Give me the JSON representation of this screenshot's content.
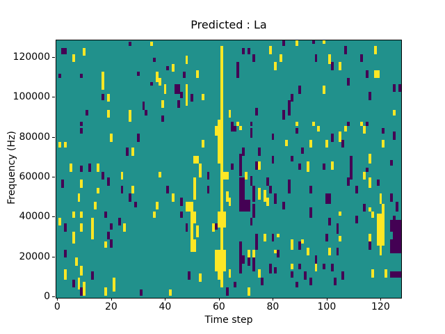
{
  "figure": {
    "title": "Predicted : La",
    "xlabel": "Time step",
    "ylabel": "Frequency (Hz)",
    "background_color": "#ffffff",
    "text_color": "#000000"
  },
  "chart_data": {
    "type": "heatmap",
    "title": "Predicted : La",
    "xlabel": "Time step",
    "ylabel": "Frequency (Hz)",
    "x_range": [
      0,
      128
    ],
    "y_range": [
      0,
      129000
    ],
    "x_ticks": [
      0,
      20,
      40,
      60,
      80,
      100,
      120
    ],
    "y_ticks": [
      0,
      20000,
      40000,
      60000,
      80000,
      100000,
      120000
    ],
    "grid_cols": 128,
    "grid_rows": 129,
    "grid_lines": false,
    "legend": false,
    "palette": {
      "t": "#21918c",
      "y": "#fde725",
      "p": "#440154"
    },
    "background_value": "t",
    "value_semantics": "p = low value, t = mid/background, y = high value (viridis)",
    "cells_format": "[col, rowTopStart, rowTopEndExclusive, colorKey, colspan(optional)] ; rows counted from top of plot (high frequency) downward",
    "cells": [
      [
        2,
        4,
        7,
        "p",
        2
      ],
      [
        10,
        4,
        8,
        "y"
      ],
      [
        6,
        7,
        11,
        "y"
      ],
      [
        27,
        1,
        3,
        "p"
      ],
      [
        35,
        1,
        3,
        "y"
      ],
      [
        36,
        9,
        11,
        "p"
      ],
      [
        41,
        13,
        15,
        "p"
      ],
      [
        1,
        17,
        19,
        "p"
      ],
      [
        9,
        17,
        19,
        "p"
      ],
      [
        17,
        16,
        25,
        "y"
      ],
      [
        30,
        16,
        18,
        "p"
      ],
      [
        35,
        21,
        23,
        "p"
      ],
      [
        37,
        16,
        21,
        "y"
      ],
      [
        38,
        19,
        23,
        "y"
      ],
      [
        40,
        22,
        27,
        "y"
      ],
      [
        17,
        27,
        30,
        "p"
      ],
      [
        19,
        27,
        31,
        "y"
      ],
      [
        39,
        30,
        34,
        "y"
      ],
      [
        32,
        31,
        35,
        "p"
      ],
      [
        33,
        35,
        38,
        "p"
      ],
      [
        11,
        35,
        38,
        "p"
      ],
      [
        19,
        35,
        39,
        "y"
      ],
      [
        27,
        35,
        41,
        "y"
      ],
      [
        9,
        41,
        43,
        "p"
      ],
      [
        39,
        38,
        41,
        "p"
      ],
      [
        61,
        3,
        40,
        "y"
      ],
      [
        69,
        4,
        7,
        "p"
      ],
      [
        71,
        4,
        7,
        "p"
      ],
      [
        79,
        3,
        7,
        "y"
      ],
      [
        84,
        0,
        3,
        "p"
      ],
      [
        48,
        8,
        12,
        "y"
      ],
      [
        73,
        7,
        11,
        "p"
      ],
      [
        83,
        7,
        11,
        "y"
      ],
      [
        43,
        12,
        16,
        "y"
      ],
      [
        47,
        16,
        19,
        "p"
      ],
      [
        52,
        15,
        19,
        "y"
      ],
      [
        67,
        11,
        19,
        "p"
      ],
      [
        81,
        11,
        15,
        "y"
      ],
      [
        44,
        22,
        27,
        "p",
        2
      ],
      [
        48,
        22,
        33,
        "y"
      ],
      [
        46,
        26,
        29,
        "p"
      ],
      [
        50,
        27,
        31,
        "p"
      ],
      [
        54,
        27,
        30,
        "y"
      ],
      [
        45,
        30,
        34,
        "p"
      ],
      [
        64,
        35,
        39,
        "y"
      ],
      [
        74,
        34,
        38,
        "p"
      ],
      [
        84,
        35,
        40,
        "p"
      ],
      [
        60,
        40,
        43,
        "y"
      ],
      [
        65,
        41,
        43,
        "p"
      ],
      [
        67,
        41,
        43,
        "y"
      ],
      [
        72,
        41,
        43,
        "p"
      ],
      [
        89,
        0,
        3,
        "y"
      ],
      [
        95,
        0,
        2,
        "p"
      ],
      [
        99,
        0,
        2,
        "y"
      ],
      [
        107,
        3,
        7,
        "p"
      ],
      [
        118,
        3,
        7,
        "y"
      ],
      [
        96,
        7,
        11,
        "p"
      ],
      [
        101,
        7,
        12,
        "y"
      ],
      [
        113,
        7,
        11,
        "p"
      ],
      [
        102,
        11,
        15,
        "p"
      ],
      [
        105,
        11,
        15,
        "y"
      ],
      [
        115,
        15,
        19,
        "p"
      ],
      [
        118,
        15,
        19,
        "y",
        2
      ],
      [
        108,
        19,
        23,
        "p"
      ],
      [
        90,
        23,
        27,
        "p"
      ],
      [
        99,
        23,
        27,
        "y"
      ],
      [
        125,
        22,
        26,
        "p"
      ],
      [
        127,
        22,
        26,
        "p"
      ],
      [
        87,
        27,
        31,
        "p"
      ],
      [
        116,
        26,
        30,
        "p"
      ],
      [
        86,
        30,
        38,
        "p"
      ],
      [
        125,
        35,
        38,
        "y"
      ],
      [
        89,
        41,
        43,
        "y"
      ],
      [
        95,
        41,
        43,
        "y"
      ],
      [
        108,
        41,
        43,
        "p"
      ],
      [
        113,
        41,
        43,
        "y"
      ],
      [
        115,
        41,
        43,
        "p"
      ],
      [
        9,
        44,
        47,
        "p"
      ],
      [
        20,
        47,
        51,
        "y"
      ],
      [
        30,
        47,
        51,
        "p"
      ],
      [
        1,
        51,
        54,
        "y"
      ],
      [
        3,
        51,
        54,
        "y"
      ],
      [
        26,
        54,
        58,
        "p"
      ],
      [
        28,
        54,
        58,
        "y"
      ],
      [
        5,
        62,
        66,
        "y"
      ],
      [
        9,
        63,
        66,
        "p"
      ],
      [
        12,
        62,
        66,
        "p"
      ],
      [
        15,
        62,
        66,
        "y"
      ],
      [
        17,
        66,
        70,
        "p"
      ],
      [
        24,
        66,
        70,
        "y"
      ],
      [
        38,
        66,
        69,
        "y"
      ],
      [
        2,
        70,
        74,
        "p"
      ],
      [
        9,
        70,
        74,
        "y"
      ],
      [
        19,
        69,
        73,
        "p"
      ],
      [
        24,
        73,
        77,
        "p"
      ],
      [
        28,
        73,
        77,
        "y"
      ],
      [
        41,
        73,
        77,
        "p"
      ],
      [
        15,
        74,
        77,
        "y"
      ],
      [
        8,
        77,
        81,
        "y"
      ],
      [
        27,
        77,
        81,
        "p"
      ],
      [
        14,
        81,
        85,
        "y"
      ],
      [
        29,
        81,
        84,
        "p"
      ],
      [
        37,
        81,
        85,
        "y"
      ],
      [
        59,
        43,
        48,
        "y"
      ],
      [
        60,
        43,
        62,
        "y"
      ],
      [
        61,
        40,
        86,
        "y"
      ],
      [
        65,
        43,
        46,
        "p",
        2
      ],
      [
        68,
        43,
        45,
        "y"
      ],
      [
        72,
        44,
        49,
        "p"
      ],
      [
        80,
        47,
        50,
        "p"
      ],
      [
        54,
        50,
        54,
        "y"
      ],
      [
        85,
        50,
        53,
        "y"
      ],
      [
        69,
        54,
        58,
        "p"
      ],
      [
        75,
        54,
        58,
        "p"
      ],
      [
        51,
        58,
        62,
        "y",
        2
      ],
      [
        68,
        57,
        68,
        "p"
      ],
      [
        74,
        61,
        65,
        "p"
      ],
      [
        75,
        61,
        65,
        "y"
      ],
      [
        80,
        58,
        62,
        "p"
      ],
      [
        53,
        62,
        69,
        "y"
      ],
      [
        56,
        66,
        70,
        "p"
      ],
      [
        62,
        66,
        70,
        "y",
        2
      ],
      [
        65,
        62,
        65,
        "p"
      ],
      [
        70,
        66,
        70,
        "y"
      ],
      [
        72,
        68,
        73,
        "p"
      ],
      [
        78,
        69,
        73,
        "p"
      ],
      [
        56,
        73,
        77,
        "p"
      ],
      [
        51,
        69,
        80,
        "y"
      ],
      [
        68,
        69,
        81,
        "p",
        2
      ],
      [
        73,
        73,
        81,
        "p"
      ],
      [
        75,
        74,
        80,
        "y"
      ],
      [
        79,
        73,
        77,
        "p"
      ],
      [
        43,
        77,
        81,
        "y"
      ],
      [
        46,
        79,
        83,
        "p"
      ],
      [
        48,
        81,
        86,
        "y",
        3
      ],
      [
        63,
        76,
        81,
        "y"
      ],
      [
        64,
        79,
        83,
        "y"
      ],
      [
        68,
        80,
        86,
        "p",
        4
      ],
      [
        77,
        75,
        81,
        "y"
      ],
      [
        78,
        79,
        83,
        "y"
      ],
      [
        81,
        77,
        82,
        "p"
      ],
      [
        73,
        82,
        86,
        "p"
      ],
      [
        84,
        81,
        85,
        "p"
      ],
      [
        89,
        44,
        47,
        "p"
      ],
      [
        97,
        43,
        46,
        "y"
      ],
      [
        107,
        43,
        46,
        "y"
      ],
      [
        114,
        43,
        47,
        "y"
      ],
      [
        121,
        44,
        47,
        "p"
      ],
      [
        102,
        47,
        51,
        "p"
      ],
      [
        105,
        46,
        51,
        "y"
      ],
      [
        106,
        50,
        54,
        "p"
      ],
      [
        94,
        50,
        54,
        "y"
      ],
      [
        100,
        50,
        54,
        "y"
      ],
      [
        125,
        46,
        50,
        "p"
      ],
      [
        121,
        50,
        54,
        "y"
      ],
      [
        91,
        54,
        57,
        "p"
      ],
      [
        87,
        58,
        61,
        "p"
      ],
      [
        116,
        57,
        62,
        "y"
      ],
      [
        109,
        58,
        70,
        "p"
      ],
      [
        90,
        62,
        65,
        "p"
      ],
      [
        93,
        61,
        66,
        "y"
      ],
      [
        99,
        62,
        65,
        "p"
      ],
      [
        102,
        61,
        65,
        "y"
      ],
      [
        124,
        60,
        63,
        "p"
      ],
      [
        115,
        64,
        66,
        "p"
      ],
      [
        114,
        66,
        70,
        "y"
      ],
      [
        108,
        69,
        73,
        "p"
      ],
      [
        116,
        69,
        74,
        "y"
      ],
      [
        119,
        70,
        73,
        "p"
      ],
      [
        86,
        70,
        77,
        "p"
      ],
      [
        111,
        73,
        77,
        "p"
      ],
      [
        94,
        73,
        77,
        "p"
      ],
      [
        100,
        77,
        82,
        "p",
        2
      ],
      [
        124,
        77,
        81,
        "p"
      ],
      [
        120,
        77,
        82,
        "y"
      ],
      [
        121,
        82,
        86,
        "y"
      ],
      [
        114,
        82,
        86,
        "p"
      ],
      [
        116,
        84,
        86,
        "y"
      ],
      [
        126,
        81,
        86,
        "p"
      ],
      [
        94,
        84,
        86,
        "p"
      ],
      [
        6,
        86,
        89,
        "y"
      ],
      [
        9,
        86,
        89,
        "y"
      ],
      [
        18,
        86,
        89,
        "p"
      ],
      [
        36,
        86,
        89,
        "y"
      ],
      [
        1,
        89,
        93,
        "y"
      ],
      [
        3,
        92,
        96,
        "p"
      ],
      [
        9,
        92,
        96,
        "y"
      ],
      [
        13,
        89,
        100,
        "y"
      ],
      [
        20,
        92,
        95,
        "p"
      ],
      [
        23,
        89,
        93,
        "p"
      ],
      [
        25,
        92,
        96,
        "y"
      ],
      [
        6,
        96,
        102,
        "y"
      ],
      [
        19,
        96,
        100,
        "p"
      ],
      [
        20,
        100,
        104,
        "p"
      ],
      [
        18,
        101,
        104,
        "y"
      ],
      [
        3,
        105,
        109,
        "p"
      ],
      [
        7,
        109,
        113,
        "y"
      ],
      [
        3,
        115,
        120,
        "y"
      ],
      [
        9,
        113,
        118,
        "y"
      ],
      [
        13,
        116,
        120,
        "p"
      ],
      [
        6,
        120,
        124,
        "p"
      ],
      [
        8,
        119,
        125,
        "y"
      ],
      [
        9,
        124,
        128,
        "p"
      ],
      [
        10,
        121,
        128,
        "y"
      ],
      [
        18,
        124,
        128,
        "y"
      ],
      [
        21,
        119,
        126,
        "y"
      ],
      [
        31,
        125,
        128,
        "p"
      ],
      [
        42,
        125,
        128,
        "y"
      ],
      [
        46,
        86,
        89,
        "p"
      ],
      [
        50,
        86,
        106,
        "y"
      ],
      [
        51,
        86,
        92,
        "y"
      ],
      [
        51,
        100,
        106,
        "y"
      ],
      [
        52,
        93,
        99,
        "y"
      ],
      [
        48,
        92,
        96,
        "p"
      ],
      [
        58,
        92,
        96,
        "y"
      ],
      [
        60,
        86,
        94,
        "y",
        3
      ],
      [
        61,
        94,
        121,
        "y"
      ],
      [
        59,
        105,
        116,
        "y"
      ],
      [
        60,
        105,
        120,
        "y"
      ],
      [
        62,
        105,
        116,
        "y"
      ],
      [
        61,
        121,
        124,
        "y"
      ],
      [
        59,
        92,
        95,
        "p"
      ],
      [
        64,
        115,
        119,
        "y"
      ],
      [
        68,
        101,
        108,
        "p"
      ],
      [
        68,
        108,
        112,
        "p",
        2
      ],
      [
        68,
        112,
        117,
        "p"
      ],
      [
        71,
        105,
        109,
        "y"
      ],
      [
        71,
        109,
        113,
        "p"
      ],
      [
        73,
        86,
        89,
        "p"
      ],
      [
        72,
        89,
        93,
        "p"
      ],
      [
        74,
        97,
        101,
        "p"
      ],
      [
        77,
        97,
        101,
        "y"
      ],
      [
        74,
        101,
        105,
        "p"
      ],
      [
        73,
        105,
        109,
        "y"
      ],
      [
        73,
        109,
        116,
        "p"
      ],
      [
        75,
        115,
        119,
        "y"
      ],
      [
        76,
        119,
        123,
        "p"
      ],
      [
        79,
        112,
        117,
        "p"
      ],
      [
        80,
        97,
        101,
        "p"
      ],
      [
        81,
        105,
        107,
        "y"
      ],
      [
        81,
        114,
        117,
        "p"
      ],
      [
        82,
        105,
        109,
        "p"
      ],
      [
        82,
        97,
        99,
        "y"
      ],
      [
        49,
        116,
        120,
        "p"
      ],
      [
        53,
        117,
        121,
        "y"
      ],
      [
        63,
        124,
        128,
        "p"
      ],
      [
        71,
        124,
        128,
        "y"
      ],
      [
        66,
        121,
        124,
        "p"
      ],
      [
        94,
        86,
        89,
        "p"
      ],
      [
        105,
        86,
        88,
        "y"
      ],
      [
        117,
        86,
        89,
        "y"
      ],
      [
        111,
        88,
        92,
        "p"
      ],
      [
        101,
        89,
        93,
        "p"
      ],
      [
        104,
        92,
        97,
        "p"
      ],
      [
        100,
        97,
        101,
        "p"
      ],
      [
        105,
        98,
        101,
        "y"
      ],
      [
        87,
        100,
        105,
        "y"
      ],
      [
        90,
        101,
        105,
        "p"
      ],
      [
        91,
        100,
        102,
        "y"
      ],
      [
        93,
        104,
        108,
        "y"
      ],
      [
        101,
        104,
        108,
        "y"
      ],
      [
        104,
        104,
        108,
        "p"
      ],
      [
        96,
        108,
        112,
        "p"
      ],
      [
        96,
        112,
        116,
        "y"
      ],
      [
        87,
        112,
        115,
        "y"
      ],
      [
        87,
        116,
        119,
        "p"
      ],
      [
        90,
        112,
        115,
        "p"
      ],
      [
        99,
        112,
        115,
        "p"
      ],
      [
        102,
        112,
        116,
        "p"
      ],
      [
        92,
        116,
        120,
        "p"
      ],
      [
        106,
        116,
        120,
        "p"
      ],
      [
        94,
        119,
        123,
        "p"
      ],
      [
        117,
        115,
        119,
        "y"
      ],
      [
        122,
        115,
        119,
        "y"
      ],
      [
        124,
        116,
        119,
        "p",
        4
      ],
      [
        89,
        121,
        124,
        "p"
      ],
      [
        103,
        119,
        123,
        "p"
      ],
      [
        119,
        87,
        103,
        "y",
        3
      ],
      [
        120,
        103,
        108,
        "y"
      ],
      [
        121,
        86,
        88,
        "y"
      ],
      [
        116,
        97,
        101,
        "y"
      ],
      [
        116,
        101,
        105,
        "p"
      ],
      [
        124,
        90,
        96,
        "p",
        4
      ],
      [
        125,
        96,
        100,
        "p",
        3
      ],
      [
        124,
        100,
        107,
        "p",
        4
      ],
      [
        125,
        88,
        90,
        "p"
      ]
    ]
  }
}
